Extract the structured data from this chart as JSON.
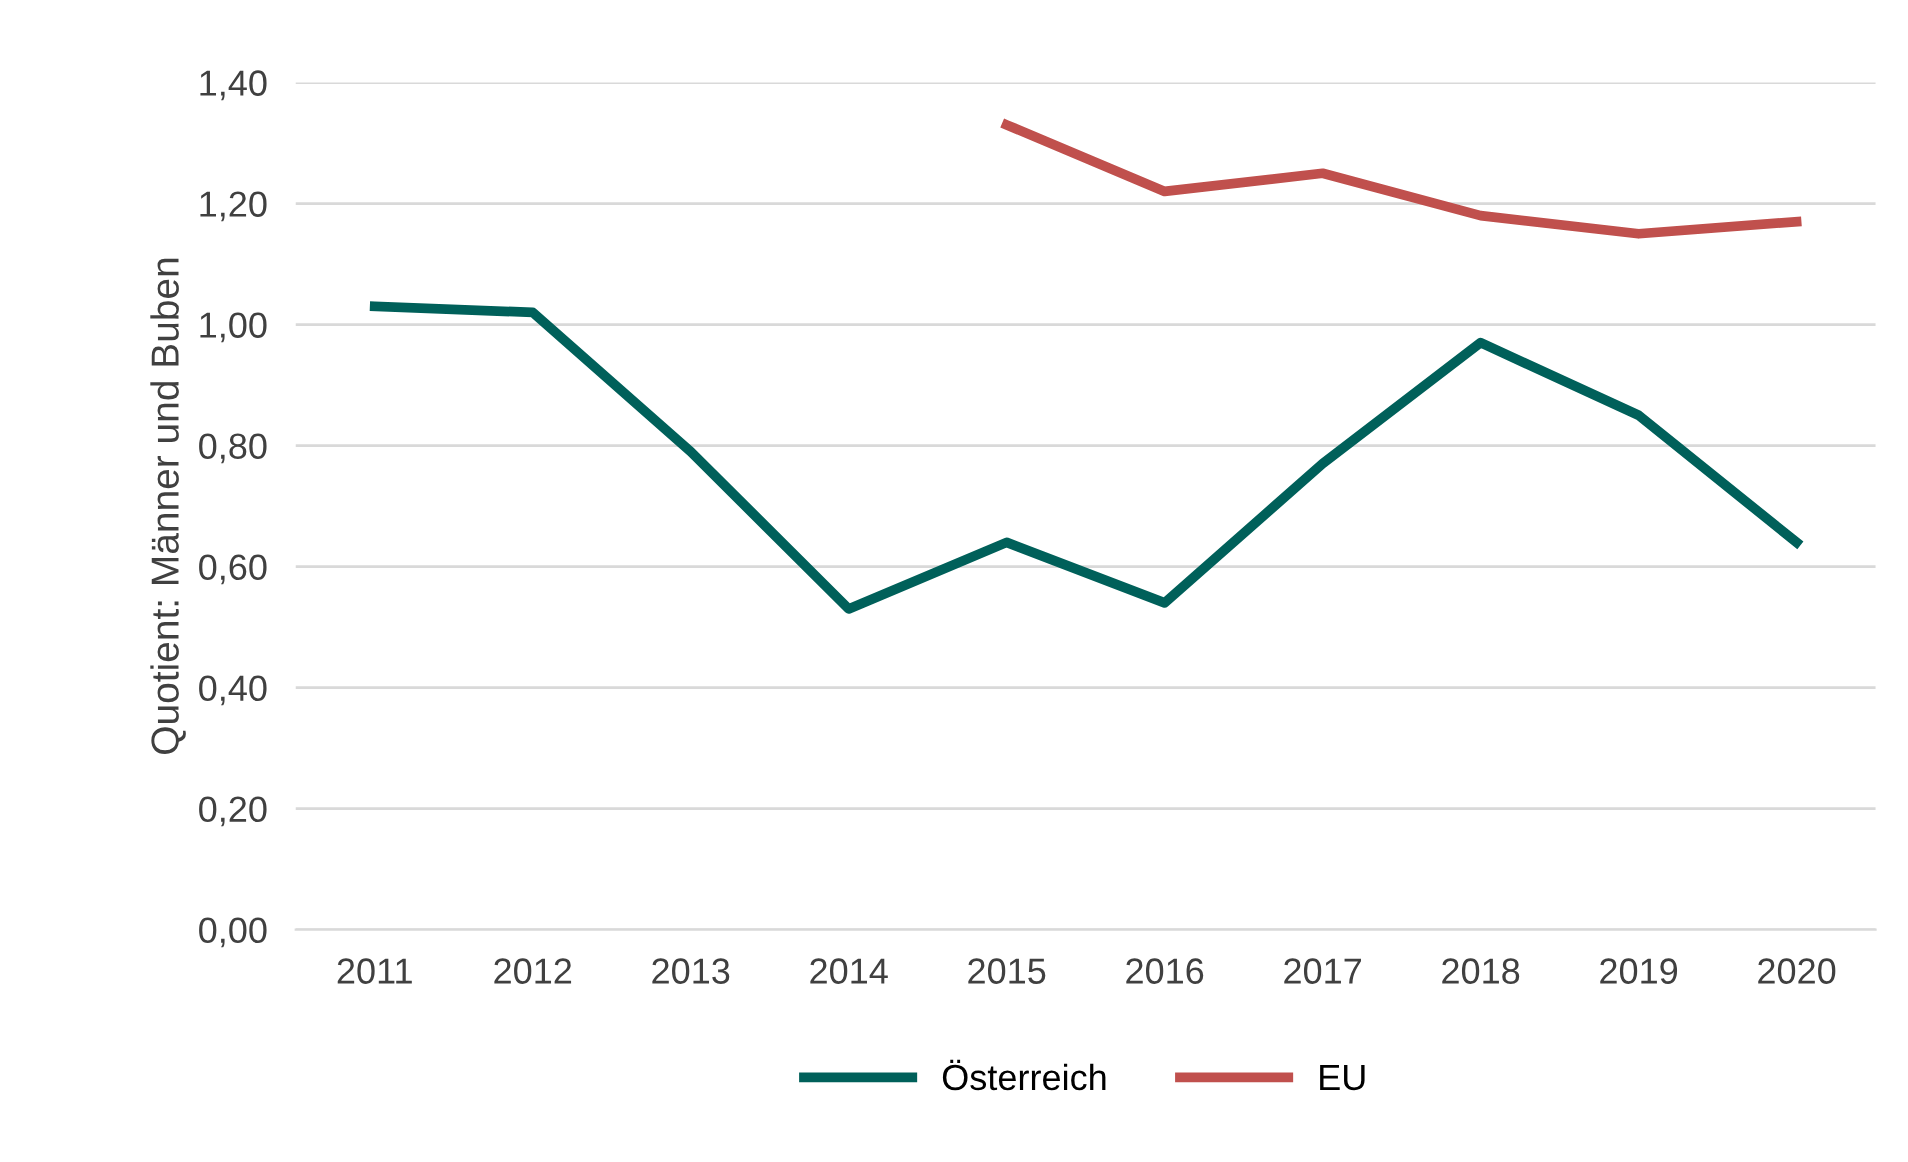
{
  "chart_data": {
    "type": "line",
    "ylabel": "Quotient: Männer und Buben",
    "categories": [
      "2011",
      "2012",
      "2013",
      "2014",
      "2015",
      "2016",
      "2017",
      "2018",
      "2019",
      "2020"
    ],
    "series": [
      {
        "name": "Österreich",
        "color": "#00605a",
        "values": [
          1.03,
          1.02,
          0.79,
          0.53,
          0.64,
          0.54,
          0.77,
          0.97,
          0.85,
          0.64
        ]
      },
      {
        "name": "EU",
        "color": "#c0504d",
        "values": [
          null,
          null,
          null,
          null,
          1.33,
          1.22,
          1.25,
          1.18,
          1.15,
          1.17
        ]
      }
    ],
    "ylim": [
      0,
      1.4
    ],
    "yticks": [
      {
        "value": 0,
        "label": "0,00"
      },
      {
        "value": 0.2,
        "label": "0,20"
      },
      {
        "value": 0.4,
        "label": "0,40"
      },
      {
        "value": 0.6,
        "label": "0,60"
      },
      {
        "value": 0.8,
        "label": "0,80"
      },
      {
        "value": 1.0,
        "label": "1,00"
      },
      {
        "value": 1.2,
        "label": "1,20"
      },
      {
        "value": 1.4,
        "label": "1,40"
      }
    ],
    "grid": "y",
    "legend": "bottom",
    "marker": "none",
    "line_style": "solid"
  }
}
